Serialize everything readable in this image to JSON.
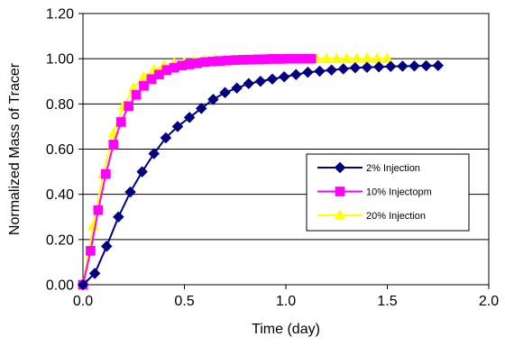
{
  "chart_data": {
    "type": "line",
    "title": "",
    "xlabel": "Time (day)",
    "ylabel": "Normalized Mass of Tracer",
    "xlim": [
      0,
      2.0
    ],
    "ylim": [
      0,
      1.2
    ],
    "x_ticks": [
      {
        "value": 0.0,
        "label": "0.0"
      },
      {
        "value": 0.5,
        "label": "0.5"
      },
      {
        "value": 1.0,
        "label": "1.0"
      },
      {
        "value": 1.5,
        "label": "1.5"
      },
      {
        "value": 2.0,
        "label": "2.0"
      }
    ],
    "y_ticks": [
      {
        "value": 0.0,
        "label": "0.00"
      },
      {
        "value": 0.2,
        "label": "0.20"
      },
      {
        "value": 0.4,
        "label": "0.40"
      },
      {
        "value": 0.6,
        "label": "0.60"
      },
      {
        "value": 0.8,
        "label": "0.80"
      },
      {
        "value": 1.0,
        "label": "1.00"
      },
      {
        "value": 1.2,
        "label": "1.20"
      }
    ],
    "grid": {
      "horizontal": true,
      "vertical": false
    },
    "legend_position": "right-middle",
    "series": [
      {
        "name": "2% Injection",
        "color": "#000080",
        "marker": "diamond",
        "x": [
          0,
          0.0583,
          0.1167,
          0.175,
          0.2333,
          0.2917,
          0.35,
          0.4083,
          0.4667,
          0.525,
          0.5833,
          0.6417,
          0.7,
          0.7583,
          0.8167,
          0.875,
          0.9333,
          0.9917,
          1.05,
          1.1083,
          1.1667,
          1.225,
          1.2833,
          1.3417,
          1.4,
          1.4583,
          1.5167,
          1.575,
          1.6333,
          1.6917,
          1.75
        ],
        "y": [
          0.0,
          0.05,
          0.17,
          0.3,
          0.41,
          0.5,
          0.58,
          0.65,
          0.7,
          0.74,
          0.78,
          0.82,
          0.85,
          0.87,
          0.89,
          0.9,
          0.91,
          0.92,
          0.93,
          0.94,
          0.945,
          0.95,
          0.955,
          0.96,
          0.962,
          0.964,
          0.966,
          0.967,
          0.968,
          0.969,
          0.97
        ]
      },
      {
        "name": "10% Injectopm",
        "color": "#ff00ff",
        "marker": "square",
        "x": [
          0,
          0.0375,
          0.075,
          0.1125,
          0.15,
          0.1875,
          0.225,
          0.2625,
          0.3,
          0.3375,
          0.375,
          0.4125,
          0.45,
          0.4875,
          0.525,
          0.5625,
          0.6,
          0.6375,
          0.675,
          0.7125,
          0.75,
          0.7875,
          0.825,
          0.8625,
          0.9,
          0.9375,
          0.975,
          1.0125,
          1.05,
          1.0875,
          1.125
        ],
        "y": [
          0.0,
          0.15,
          0.33,
          0.49,
          0.62,
          0.72,
          0.79,
          0.84,
          0.88,
          0.91,
          0.93,
          0.95,
          0.96,
          0.97,
          0.975,
          0.98,
          0.985,
          0.988,
          0.99,
          0.992,
          0.994,
          0.995,
          0.996,
          0.997,
          0.998,
          0.999,
          0.999,
          1.0,
          1.0,
          1.0,
          1.0
        ]
      },
      {
        "name": "20% Injection",
        "color": "#ffff00",
        "marker": "triangle",
        "x": [
          0,
          0.05,
          0.1,
          0.15,
          0.2,
          0.25,
          0.3,
          0.35,
          0.4,
          0.45,
          0.5,
          0.55,
          0.6,
          0.65,
          0.7,
          0.75,
          0.8,
          0.85,
          0.9,
          0.95,
          1.0,
          1.05,
          1.1,
          1.15,
          1.2,
          1.25,
          1.3,
          1.35,
          1.4,
          1.45,
          1.5
        ],
        "y": [
          0.0,
          0.26,
          0.49,
          0.67,
          0.79,
          0.87,
          0.92,
          0.95,
          0.97,
          0.98,
          0.985,
          0.99,
          0.993,
          0.995,
          0.996,
          0.997,
          0.998,
          0.998,
          0.999,
          0.999,
          1.0,
          1.0,
          1.0,
          1.0,
          1.0,
          1.0,
          1.0,
          1.0,
          1.0,
          1.0,
          1.0
        ]
      }
    ]
  }
}
